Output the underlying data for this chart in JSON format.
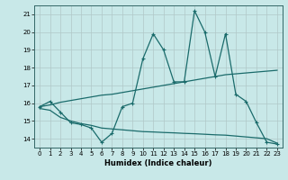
{
  "xlabel": "Humidex (Indice chaleur)",
  "xlim": [
    -0.5,
    23.5
  ],
  "ylim": [
    13.5,
    21.5
  ],
  "yticks": [
    14,
    15,
    16,
    17,
    18,
    19,
    20,
    21
  ],
  "xticks": [
    0,
    1,
    2,
    3,
    4,
    5,
    6,
    7,
    8,
    9,
    10,
    11,
    12,
    13,
    14,
    15,
    16,
    17,
    18,
    19,
    20,
    21,
    22,
    23
  ],
  "bg_color": "#c8e8e8",
  "grid_color": "#b0c8c8",
  "line_color": "#1a6b6b",
  "series": {
    "line1_x": [
      0,
      1,
      2,
      3,
      4,
      5,
      6,
      7,
      8,
      9,
      10,
      11,
      12,
      13,
      14,
      15,
      16,
      17,
      18,
      19,
      20,
      21,
      22,
      23
    ],
    "line1_y": [
      15.8,
      16.1,
      15.5,
      14.9,
      14.8,
      14.6,
      13.8,
      14.3,
      15.8,
      16.0,
      18.5,
      19.9,
      19.0,
      17.2,
      17.2,
      21.2,
      20.0,
      17.5,
      19.9,
      16.5,
      16.1,
      14.9,
      13.8,
      13.7
    ],
    "line2_x": [
      0,
      1,
      2,
      3,
      4,
      5,
      6,
      7,
      8,
      9,
      10,
      11,
      12,
      13,
      14,
      15,
      16,
      17,
      18,
      19,
      20,
      21,
      22,
      23
    ],
    "line2_y": [
      15.8,
      15.9,
      16.05,
      16.15,
      16.25,
      16.35,
      16.45,
      16.5,
      16.6,
      16.7,
      16.8,
      16.9,
      17.0,
      17.1,
      17.2,
      17.3,
      17.4,
      17.5,
      17.6,
      17.65,
      17.7,
      17.75,
      17.8,
      17.85
    ],
    "line3_x": [
      0,
      1,
      2,
      3,
      4,
      5,
      6,
      7,
      8,
      9,
      10,
      11,
      12,
      13,
      14,
      15,
      16,
      17,
      18,
      19,
      20,
      21,
      22,
      23
    ],
    "line3_y": [
      15.7,
      15.6,
      15.2,
      15.0,
      14.85,
      14.75,
      14.6,
      14.55,
      14.5,
      14.45,
      14.4,
      14.38,
      14.35,
      14.33,
      14.3,
      14.28,
      14.25,
      14.22,
      14.2,
      14.15,
      14.1,
      14.05,
      14.0,
      13.75
    ]
  }
}
